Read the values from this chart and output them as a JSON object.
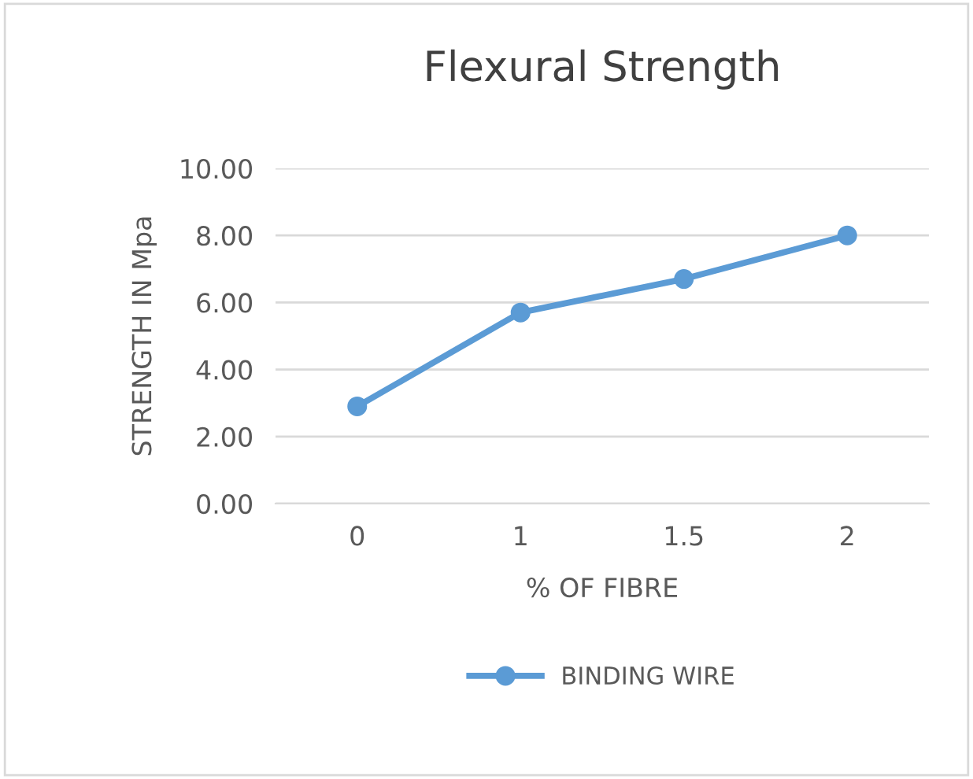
{
  "chart_data": {
    "type": "line",
    "title": "Flexural Strength",
    "xlabel": "% OF FIBRE",
    "ylabel": "STRENGTH IN Mpa",
    "categories": [
      "0",
      "1",
      "1.5",
      "2"
    ],
    "series": [
      {
        "name": "BINDING WIRE",
        "color": "#5b9bd5",
        "values": [
          2.9,
          5.7,
          6.7,
          8.0
        ]
      }
    ],
    "ylim": [
      0,
      10
    ],
    "yticks": [
      {
        "value": 0,
        "label": "0.00"
      },
      {
        "value": 2,
        "label": "2.00"
      },
      {
        "value": 4,
        "label": "4.00"
      },
      {
        "value": 6,
        "label": "6.00"
      },
      {
        "value": 8,
        "label": "8.00"
      },
      {
        "value": 10,
        "label": "10.00"
      }
    ],
    "grid": "y",
    "legend": "bottom",
    "marker": "circle",
    "line_style": "solid"
  }
}
